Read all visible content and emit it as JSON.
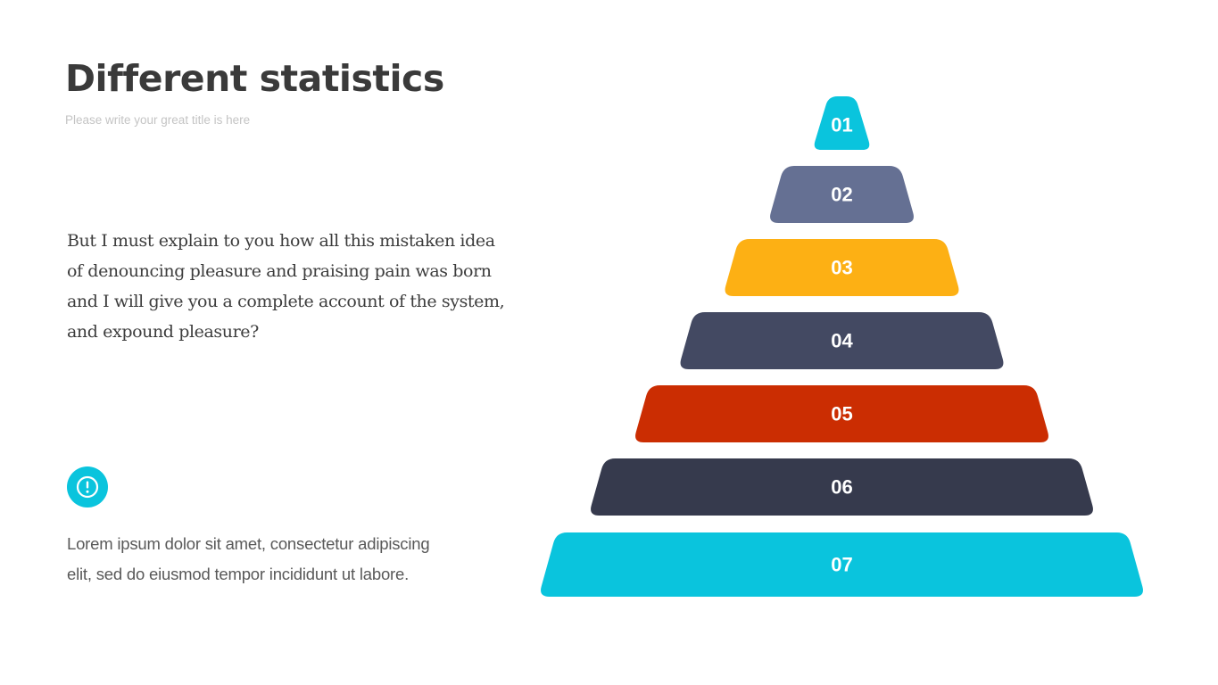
{
  "header": {
    "title": "Different statistics",
    "subtitle": "Please write your great title is here"
  },
  "body": {
    "paragraph": "But I must explain to you how all this mistaken idea of denouncing pleasure and praising pain was born and I will give you a complete account of the system, and expound pleasure?"
  },
  "note": {
    "icon": "exclamation-circle-icon",
    "icon_color": "#0AC4DD",
    "text": "Lorem ipsum dolor sit amet, consectetur adipiscing elit, sed do eiusmod tempor incididunt ut labore."
  },
  "pyramid": {
    "tiers": [
      {
        "label": "01",
        "color": "#0AC4DD"
      },
      {
        "label": "02",
        "color": "#657093"
      },
      {
        "label": "03",
        "color": "#FDB014"
      },
      {
        "label": "04",
        "color": "#434962"
      },
      {
        "label": "05",
        "color": "#CB2D02"
      },
      {
        "label": "06",
        "color": "#363A4D"
      },
      {
        "label": "07",
        "color": "#0AC4DD"
      }
    ]
  }
}
